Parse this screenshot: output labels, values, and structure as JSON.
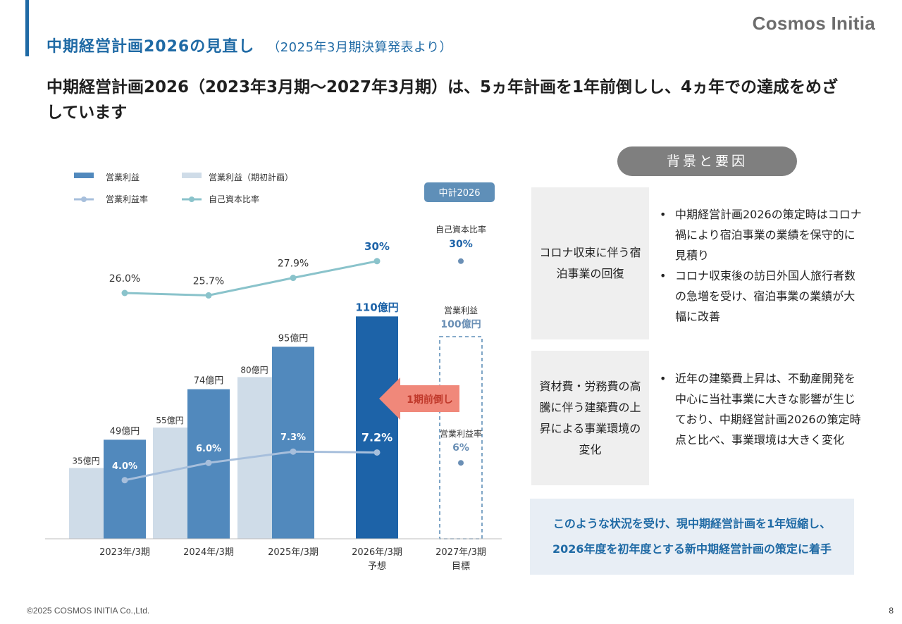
{
  "header": {
    "title": "中期経営計画2026の見直し",
    "subtitle": "（2025年3月期決算発表より）",
    "logo": "Cosmos Initia"
  },
  "headline": "中期経営計画2026（2023年3月期～2027年3月期）は、5ヵ年計画を1年前倒しし、4ヵ年での達成をめざしています",
  "chart_data": {
    "type": "bar",
    "categories": [
      "2023年/3期",
      "2024年/3期",
      "2025年/3期",
      "2026年/3期\n予想",
      "2027年/3期\n目標"
    ],
    "legend": {
      "op_profit": "営業利益",
      "op_profit_plan": "営業利益（期初計画）",
      "op_margin": "営業利益率",
      "equity_ratio": "自己資本比率"
    },
    "series": [
      {
        "name": "営業利益（期初計画）",
        "values": [
          35,
          55,
          80,
          null,
          null
        ],
        "labels": [
          "35億円",
          "55億円",
          "80億円",
          "",
          ""
        ]
      },
      {
        "name": "営業利益",
        "values": [
          49,
          74,
          95,
          110,
          null
        ],
        "labels": [
          "49億円",
          "74億円",
          "95億円",
          "110億円",
          ""
        ]
      },
      {
        "name": "営業利益率",
        "values": [
          4.0,
          6.0,
          7.3,
          7.2,
          null
        ],
        "labels": [
          "4.0%",
          "6.0%",
          "7.3%",
          "7.2%",
          ""
        ]
      },
      {
        "name": "自己資本比率",
        "values": [
          26.0,
          25.7,
          27.9,
          30,
          null
        ],
        "labels": [
          "26.0%",
          "25.7%",
          "27.9%",
          "30%",
          ""
        ]
      }
    ],
    "target_2027": {
      "badge": "中計2026",
      "equity_label": "自己資本比率",
      "equity_value": 30,
      "equity_text": "30%",
      "profit_label": "営業利益",
      "profit_value": 100,
      "profit_text": "100億円",
      "margin_label": "営業利益率",
      "margin_value": 6,
      "margin_text": "6%"
    },
    "arrow_label": "1期前倒し",
    "colors": {
      "op_profit": "#5189bd",
      "op_profit_highlight": "#1d63a8",
      "op_profit_plan": "#cfdce8",
      "op_margin_line": "#a7bfdc",
      "equity_line": "#8ac3cb",
      "arrow": "#f0887a",
      "target_border": "#5f8fb8",
      "badge": "#5f8fb8",
      "label_blue": "#1d63a8",
      "label_muted": "#6a8fb5"
    }
  },
  "background": {
    "pill": "背景と要因",
    "reasons": [
      {
        "box": "コロナ収束に伴う宿泊事業の回復",
        "bullets": [
          "中期経営計画2026の策定時はコロナ禍により宿泊事業の業績を保守的に見積り",
          "コロナ収束後の訪日外国人旅行者数の急増を受け、宿泊事業の業績が大幅に改善"
        ]
      },
      {
        "box": "資材費・労務費の高騰に伴う建築費の上昇による事業環境の変化",
        "bullets": [
          "近年の建築費上昇は、不動産開発を中心に当社事業に大きな影響が生じており、中期経営計画2026の策定時点と比べ、事業環境は大きく変化"
        ]
      }
    ],
    "conclusion": [
      "このような状況を受け、現中期経営計画を1年短縮し、",
      "2026年度を初年度とする新中期経営計画の策定に着手"
    ]
  },
  "footer": {
    "copyright": "©2025 COSMOS INITIA Co.,Ltd.",
    "page": "8"
  }
}
